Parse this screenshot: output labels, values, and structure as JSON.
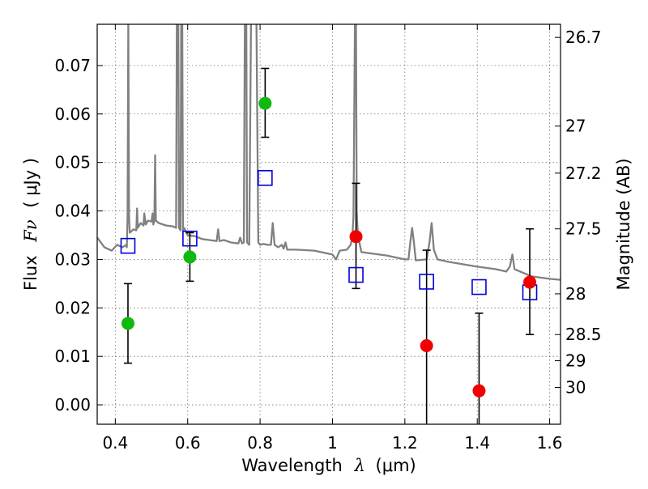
{
  "chart_data": {
    "type": "scatter",
    "xlabel_text": "Wavelength",
    "xlabel_symbol": "λ",
    "xlabel_unit": "(μm)",
    "ylabel_text": "Flux",
    "ylabel_symbol": "Fν",
    "ylabel_unit": "( μJy )",
    "y2label": "Magnitude (AB)",
    "xlim": [
      0.35,
      1.63
    ],
    "ylim": [
      -0.004,
      0.0785
    ],
    "grid": true,
    "x_ticks": [
      {
        "value": 0.4,
        "label": "0.4"
      },
      {
        "value": 0.6,
        "label": "0.6"
      },
      {
        "value": 0.8,
        "label": "0.8"
      },
      {
        "value": 1.0,
        "label": "1"
      },
      {
        "value": 1.2,
        "label": "1.2"
      },
      {
        "value": 1.4,
        "label": "1.4"
      },
      {
        "value": 1.6,
        "label": "1.6"
      }
    ],
    "y_ticks": [
      {
        "value": 0.0,
        "label": "0.00"
      },
      {
        "value": 0.01,
        "label": "0.01"
      },
      {
        "value": 0.02,
        "label": "0.02"
      },
      {
        "value": 0.03,
        "label": "0.03"
      },
      {
        "value": 0.04,
        "label": "0.04"
      },
      {
        "value": 0.05,
        "label": "0.05"
      },
      {
        "value": 0.06,
        "label": "0.06"
      },
      {
        "value": 0.07,
        "label": "0.07"
      }
    ],
    "y2_ticks": [
      {
        "label": "26.7",
        "flux": 0.0758
      },
      {
        "label": "27",
        "flux": 0.0575
      },
      {
        "label": "27.2",
        "flux": 0.0478
      },
      {
        "label": "27.5",
        "flux": 0.0363
      },
      {
        "label": "28",
        "flux": 0.0229
      },
      {
        "label": "28.5",
        "flux": 0.0145
      },
      {
        "label": "29",
        "flux": 0.0091
      },
      {
        "label": "30",
        "flux": 0.0036
      }
    ],
    "observed_optical": {
      "color": "#10b810",
      "points": [
        {
          "x": 0.435,
          "y": 0.0168,
          "yerr_low": 0.0082,
          "yerr_high": 0.0082
        },
        {
          "x": 0.606,
          "y": 0.0305,
          "yerr_low": 0.005,
          "yerr_high": 0.005
        },
        {
          "x": 0.814,
          "y": 0.0622,
          "yerr_low": 0.007,
          "yerr_high": 0.0072
        }
      ]
    },
    "observed_nir": {
      "color": "#f00000",
      "points": [
        {
          "x": 1.065,
          "y": 0.0347,
          "yerr_low": 0.0107,
          "yerr_high": 0.011
        },
        {
          "x": 1.26,
          "y": 0.0122,
          "yerr_low": 0.017,
          "yerr_high": 0.0197
        },
        {
          "x": 1.405,
          "y": 0.0029,
          "yerr_low": 0.008,
          "yerr_high": 0.016
        },
        {
          "x": 1.545,
          "y": 0.0253,
          "yerr_low": 0.0108,
          "yerr_high": 0.011
        }
      ]
    },
    "model_photometry": {
      "color": "#0000dd",
      "points": [
        {
          "x": 0.435,
          "y": 0.0328
        },
        {
          "x": 0.606,
          "y": 0.0343
        },
        {
          "x": 0.814,
          "y": 0.0468
        },
        {
          "x": 1.065,
          "y": 0.0268
        },
        {
          "x": 1.26,
          "y": 0.0254
        },
        {
          "x": 1.405,
          "y": 0.0243
        },
        {
          "x": 1.545,
          "y": 0.0232
        }
      ]
    },
    "model_spectrum": {
      "color": "#808080",
      "points": [
        [
          0.35,
          0.0345
        ],
        [
          0.37,
          0.0325
        ],
        [
          0.39,
          0.0318
        ],
        [
          0.405,
          0.033
        ],
        [
          0.42,
          0.0325
        ],
        [
          0.43,
          0.033
        ],
        [
          0.432,
          0.0325
        ],
        [
          0.434,
          0.039
        ],
        [
          0.436,
          0.079
        ],
        [
          0.438,
          0.039
        ],
        [
          0.44,
          0.0355
        ],
        [
          0.45,
          0.0362
        ],
        [
          0.458,
          0.036
        ],
        [
          0.46,
          0.0405
        ],
        [
          0.462,
          0.0365
        ],
        [
          0.47,
          0.0375
        ],
        [
          0.478,
          0.037
        ],
        [
          0.48,
          0.0395
        ],
        [
          0.484,
          0.0372
        ],
        [
          0.49,
          0.038
        ],
        [
          0.5,
          0.0378
        ],
        [
          0.503,
          0.0395
        ],
        [
          0.505,
          0.0372
        ],
        [
          0.508,
          0.038
        ],
        [
          0.51,
          0.0515
        ],
        [
          0.512,
          0.038
        ],
        [
          0.52,
          0.0375
        ],
        [
          0.54,
          0.037
        ],
        [
          0.56,
          0.0368
        ],
        [
          0.568,
          0.0365
        ],
        [
          0.57,
          0.079
        ],
        [
          0.574,
          0.079
        ],
        [
          0.576,
          0.0365
        ],
        [
          0.58,
          0.036
        ],
        [
          0.582,
          0.079
        ],
        [
          0.585,
          0.079
        ],
        [
          0.587,
          0.036
        ],
        [
          0.59,
          0.0365
        ],
        [
          0.6,
          0.035
        ],
        [
          0.62,
          0.0348
        ],
        [
          0.64,
          0.0342
        ],
        [
          0.66,
          0.034
        ],
        [
          0.68,
          0.0338
        ],
        [
          0.684,
          0.0362
        ],
        [
          0.688,
          0.0338
        ],
        [
          0.7,
          0.034
        ],
        [
          0.72,
          0.0335
        ],
        [
          0.74,
          0.0333
        ],
        [
          0.745,
          0.0345
        ],
        [
          0.75,
          0.0333
        ],
        [
          0.755,
          0.0335
        ],
        [
          0.758,
          0.079
        ],
        [
          0.762,
          0.079
        ],
        [
          0.764,
          0.0335
        ],
        [
          0.77,
          0.033
        ],
        [
          0.775,
          0.079
        ],
        [
          0.79,
          0.079
        ],
        [
          0.795,
          0.0335
        ],
        [
          0.8,
          0.033
        ],
        [
          0.81,
          0.0332
        ],
        [
          0.82,
          0.033
        ],
        [
          0.83,
          0.033
        ],
        [
          0.835,
          0.0375
        ],
        [
          0.84,
          0.033
        ],
        [
          0.85,
          0.0325
        ],
        [
          0.86,
          0.033
        ],
        [
          0.865,
          0.0322
        ],
        [
          0.87,
          0.0335
        ],
        [
          0.875,
          0.032
        ],
        [
          0.9,
          0.032
        ],
        [
          0.95,
          0.0318
        ],
        [
          1.0,
          0.031
        ],
        [
          1.01,
          0.03
        ],
        [
          1.02,
          0.0318
        ],
        [
          1.04,
          0.032
        ],
        [
          1.05,
          0.033
        ],
        [
          1.055,
          0.0345
        ],
        [
          1.058,
          0.039
        ],
        [
          1.062,
          0.079
        ],
        [
          1.065,
          0.079
        ],
        [
          1.067,
          0.04
        ],
        [
          1.07,
          0.035
        ],
        [
          1.08,
          0.0315
        ],
        [
          1.1,
          0.0313
        ],
        [
          1.15,
          0.0308
        ],
        [
          1.2,
          0.03
        ],
        [
          1.21,
          0.03
        ],
        [
          1.215,
          0.0335
        ],
        [
          1.22,
          0.0365
        ],
        [
          1.225,
          0.0335
        ],
        [
          1.23,
          0.0298
        ],
        [
          1.26,
          0.03
        ],
        [
          1.268,
          0.0335
        ],
        [
          1.274,
          0.0375
        ],
        [
          1.28,
          0.032
        ],
        [
          1.29,
          0.03
        ],
        [
          1.32,
          0.0295
        ],
        [
          1.4,
          0.0285
        ],
        [
          1.45,
          0.028
        ],
        [
          1.48,
          0.0275
        ],
        [
          1.49,
          0.0285
        ],
        [
          1.497,
          0.031
        ],
        [
          1.503,
          0.028
        ],
        [
          1.55,
          0.0265
        ],
        [
          1.6,
          0.026
        ],
        [
          1.63,
          0.0258
        ]
      ]
    }
  }
}
